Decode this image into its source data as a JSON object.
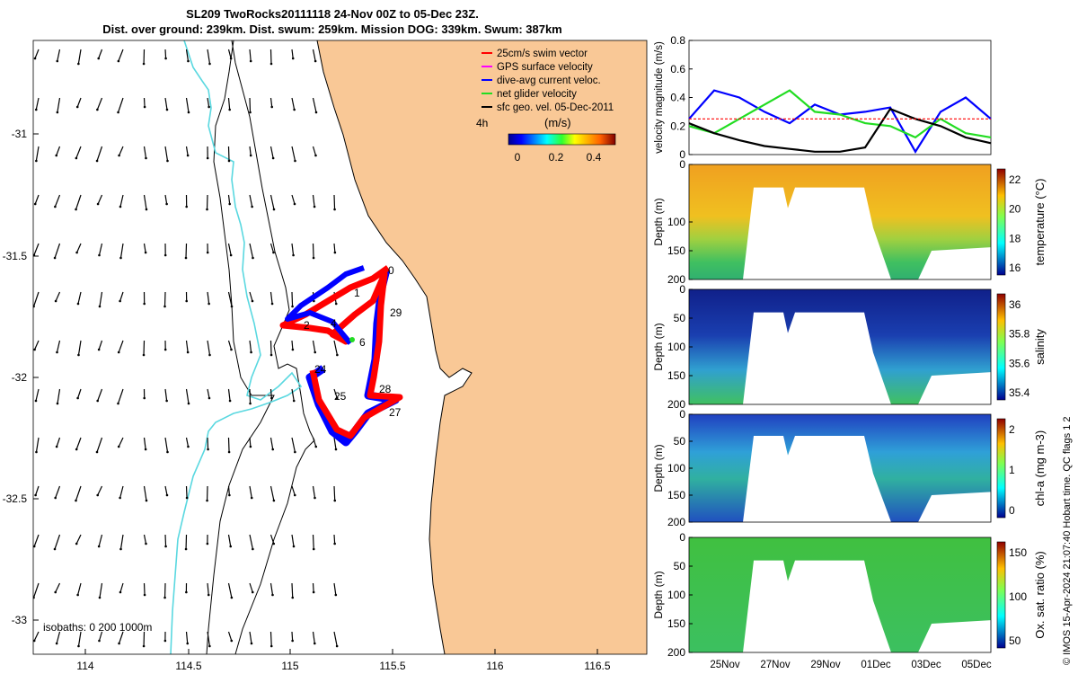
{
  "title": {
    "line1": "SL209 TwoRocks20111118 24-Nov 00Z to 05-Dec 23Z.",
    "line2": "Dist. over ground: 239km. Dist. swum: 259km. Mission DOG: 339km. Swum: 387km"
  },
  "colors": {
    "land": "#f9c896",
    "coast": "#5ad8e0",
    "track_red": "#ff0000",
    "track_blue": "#0000ff",
    "net_green": "#22dd22",
    "gps_magenta": "#ff00ff"
  },
  "map": {
    "xticks": [
      "114",
      "114.5",
      "115",
      "115.5",
      "116",
      "116.5"
    ],
    "yticks": [
      "-31",
      "-31.5",
      "-32",
      "-32.5",
      "-33"
    ],
    "isobaths_label": "isobaths: 0   200  1000m",
    "legend": [
      {
        "label": "25cm/s swim vector",
        "color": "#ff0000"
      },
      {
        "label": "GPS surface velocity",
        "color": "#ff00ff"
      },
      {
        "label": "dive-avg current veloc.",
        "color": "#0000ff"
      },
      {
        "label": "net glider velocity",
        "color": "#22dd22"
      },
      {
        "label": "sfc geo. vel. 05-Dec-2011",
        "color": "#000000"
      }
    ],
    "colorbar": {
      "unit": "(m/s)",
      "note": "4h",
      "ticks": [
        "0",
        "0.2",
        "0.4"
      ]
    },
    "day_labels": [
      "0",
      "1",
      "2",
      "4",
      "6",
      "24",
      "25",
      "28",
      "27",
      "29"
    ]
  },
  "chart_data": [
    {
      "type": "line",
      "ylabel": "velocity magnitude (m/s)",
      "ylim": [
        0,
        0.8
      ],
      "yticks": [
        "0",
        "0.2",
        "0.4",
        "0.6",
        "0.8"
      ],
      "x": [
        0,
        1,
        2,
        3,
        4,
        5,
        6,
        7,
        8,
        9,
        10,
        11,
        12
      ],
      "series": [
        {
          "name": "dive-avg current veloc.",
          "values": [
            0.25,
            0.45,
            0.4,
            0.3,
            0.22,
            0.35,
            0.28,
            0.3,
            0.33,
            0.02,
            0.3,
            0.4,
            0.25
          ]
        },
        {
          "name": "net glider velocity",
          "values": [
            0.2,
            0.15,
            0.25,
            0.35,
            0.45,
            0.3,
            0.28,
            0.22,
            0.2,
            0.12,
            0.25,
            0.15,
            0.12
          ]
        },
        {
          "name": "sfc geo. vel. 05-Dec-2011",
          "values": [
            0.22,
            0.15,
            0.1,
            0.06,
            0.04,
            0.02,
            0.02,
            0.05,
            0.32,
            0.25,
            0.2,
            0.12,
            0.08
          ]
        },
        {
          "name": "25cm/s swim vector",
          "values": [
            0.25,
            0.25,
            0.25,
            0.25,
            0.25,
            0.25,
            0.25,
            0.25,
            0.25,
            0.25,
            0.25,
            0.25,
            0.25
          ]
        }
      ]
    },
    {
      "type": "heatmap",
      "ylabel": "Depth (m)",
      "yticks": [
        "0",
        "100",
        "150",
        "200"
      ],
      "cbar_label": "temperature (°C)",
      "cbar_ticks": [
        "22",
        "20",
        "18",
        "16"
      ]
    },
    {
      "type": "heatmap",
      "ylabel": "Depth (m)",
      "yticks": [
        "0",
        "50",
        "100",
        "150",
        "200"
      ],
      "cbar_label": "salinity",
      "cbar_ticks": [
        "36",
        "35.8",
        "35.6",
        "35.4"
      ]
    },
    {
      "type": "heatmap",
      "ylabel": "Depth (m)",
      "yticks": [
        "0",
        "50",
        "100",
        "150",
        "200"
      ],
      "cbar_label": "chl-a (mg m-3)",
      "cbar_ticks": [
        "2",
        "1",
        "0"
      ]
    },
    {
      "type": "heatmap",
      "ylabel": "Depth (m)",
      "yticks": [
        "0",
        "50",
        "100",
        "150",
        "200"
      ],
      "cbar_label": "Ox. sat. ratio (%)",
      "cbar_ticks": [
        "150",
        "100",
        "50"
      ],
      "xticks": [
        "25Nov",
        "27Nov",
        "29Nov",
        "01Dec",
        "03Dec",
        "05Dec"
      ]
    }
  ],
  "qc_note": "QC flags 1  2",
  "credit": "© IMOS 15-Apr-2024 21:07:40 Hobart time. QC flags 1  2"
}
